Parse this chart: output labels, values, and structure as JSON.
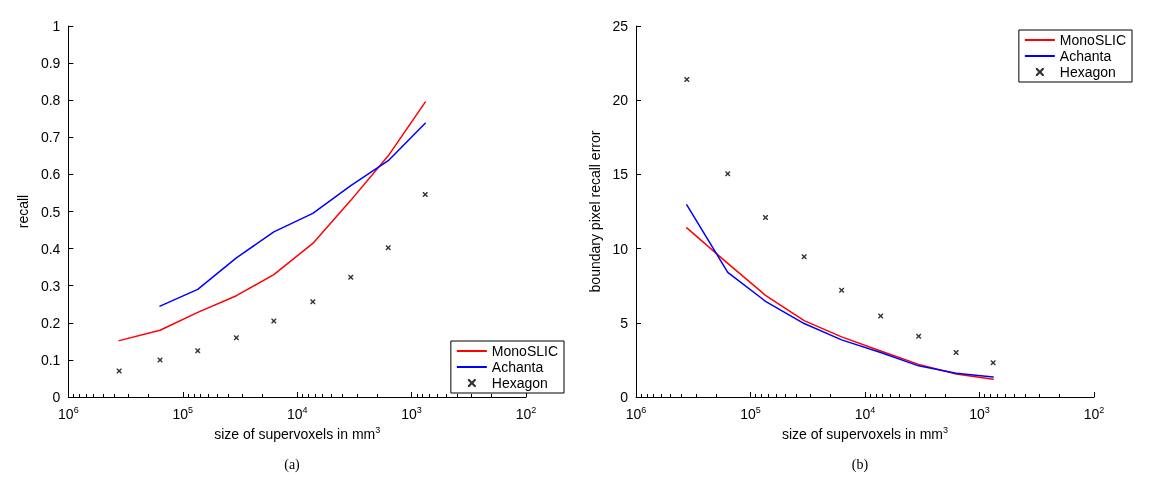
{
  "chart_data": [
    {
      "type": "line",
      "xlabel": "size of supervoxels in mm$^{3}$",
      "ylabel": "recall",
      "annotations": [
        "(a)"
      ],
      "log": "x",
      "grid": false,
      "legend": "bottom right",
      "marker": "none",
      "line_style": "solid",
      "x": [
        360000,
        158000,
        74000,
        34000,
        16000,
        7300,
        3400,
        1600,
        760
      ],
      "xlim": [
        1000000,
        100
      ],
      "xticks": [
        {
          "value": 1000000,
          "label": "10$^{6}$"
        },
        {
          "value": 100000,
          "label": "10$^{5}$"
        },
        {
          "value": 10000,
          "label": "10$^{4}$"
        },
        {
          "value": 1000,
          "label": "10$^{3}$"
        },
        {
          "value": 100,
          "label": "10$^{2}$"
        }
      ],
      "ylim": [
        0,
        1
      ],
      "yticks": [
        0,
        0.1,
        0.2,
        0.3,
        0.4,
        0.5,
        0.6,
        0.7,
        0.8,
        0.9,
        1
      ],
      "series": [
        {
          "name": "MonoSLIC",
          "color": "#ff0000",
          "values": [
            0.152,
            0.18,
            0.228,
            0.273,
            0.33,
            0.414,
            0.53,
            0.65,
            0.795
          ]
        },
        {
          "name": "Achanta",
          "color": "#0000ff",
          "values": [
            null,
            0.245,
            0.29,
            0.375,
            0.445,
            0.495,
            0.57,
            0.637,
            0.738
          ]
        },
        {
          "name": "Hexagon",
          "color": "#000000",
          "type": "scatter",
          "marker": "cross",
          "values": [
            0.07,
            0.1,
            0.125,
            0.16,
            0.205,
            0.257,
            0.323,
            0.402,
            0.546
          ]
        }
      ]
    },
    {
      "type": "line",
      "xlabel": "size of supervoxels in mm$^{3}$",
      "ylabel": "boundary pixel recall error",
      "annotations": [
        "(b)"
      ],
      "log": "x",
      "grid": false,
      "legend": "top right",
      "marker": "none",
      "line_style": "solid",
      "x": [
        360000,
        158000,
        74000,
        34000,
        16000,
        7300,
        3400,
        1600,
        760
      ],
      "xlim": [
        1000000,
        100
      ],
      "xticks": [
        {
          "value": 1000000,
          "label": "10$^{6}$"
        },
        {
          "value": 100000,
          "label": "10$^{5}$"
        },
        {
          "value": 10000,
          "label": "10$^{4}$"
        },
        {
          "value": 1000,
          "label": "10$^{3}$"
        },
        {
          "value": 100,
          "label": "10$^{2}$"
        }
      ],
      "ylim": [
        0,
        25
      ],
      "yticks": [
        0,
        5,
        10,
        15,
        20,
        25
      ],
      "series": [
        {
          "name": "MonoSLIC",
          "color": "#ff0000",
          "values": [
            11.4,
            9.0,
            6.85,
            5.15,
            4.05,
            3.1,
            2.2,
            1.55,
            1.2
          ]
        },
        {
          "name": "Achanta",
          "color": "#0000ff",
          "values": [
            12.95,
            8.4,
            6.45,
            4.95,
            3.85,
            3.0,
            2.1,
            1.6,
            1.35
          ]
        },
        {
          "name": "Hexagon",
          "color": "#000000",
          "type": "scatter",
          "marker": "cross",
          "values": [
            21.4,
            15.05,
            12.1,
            9.45,
            7.2,
            5.45,
            4.1,
            3.0,
            2.3
          ]
        }
      ]
    }
  ]
}
